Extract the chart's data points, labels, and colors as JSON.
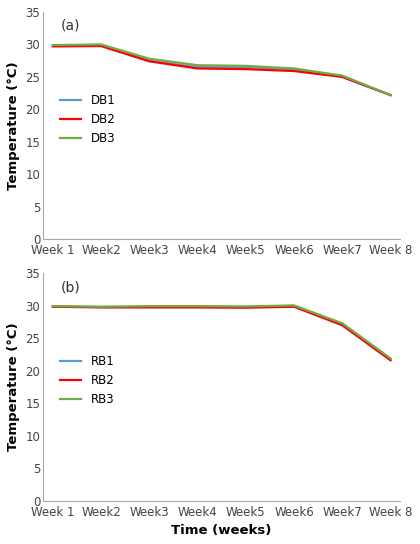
{
  "weeks": [
    "Week 1",
    "Week2",
    "Week3",
    "Week4",
    "Week5",
    "Week6",
    "Week7",
    "Week 8"
  ],
  "panel_a": {
    "label": "(a)",
    "series": {
      "DB1": {
        "color": "#5B9BD5",
        "values": [
          29.8,
          29.9,
          27.5,
          26.5,
          26.5,
          26.2,
          25.0,
          22.2
        ]
      },
      "DB2": {
        "color": "#FF0000",
        "values": [
          29.7,
          29.75,
          27.4,
          26.3,
          26.2,
          25.9,
          25.0,
          22.2
        ]
      },
      "DB3": {
        "color": "#70AD47",
        "values": [
          29.9,
          30.0,
          27.8,
          26.8,
          26.7,
          26.3,
          25.2,
          22.2
        ]
      }
    },
    "ylabel": "Temperature (°C)",
    "ylim": [
      0,
      35
    ],
    "yticks": [
      0,
      5,
      10,
      15,
      20,
      25,
      30,
      35
    ]
  },
  "panel_b": {
    "label": "(b)",
    "series": {
      "RB1": {
        "color": "#5B9BD5",
        "values": [
          29.9,
          29.8,
          29.8,
          29.8,
          29.8,
          30.0,
          27.2,
          21.8
        ]
      },
      "RB2": {
        "color": "#FF0000",
        "values": [
          29.85,
          29.75,
          29.75,
          29.75,
          29.7,
          29.85,
          27.0,
          21.6
        ]
      },
      "RB3": {
        "color": "#70AD47",
        "values": [
          29.95,
          29.85,
          29.95,
          29.95,
          29.9,
          30.05,
          27.3,
          21.9
        ]
      }
    },
    "ylabel": "Temperature (°C)",
    "xlabel": "Time (weeks)",
    "ylim": [
      0,
      35
    ],
    "yticks": [
      0,
      5,
      10,
      15,
      20,
      25,
      30,
      35
    ]
  },
  "line_width": 1.6,
  "legend_fontsize": 8.5,
  "axis_label_fontsize": 9.5,
  "tick_fontsize": 8.5,
  "panel_label_fontsize": 10,
  "background_color": "#ffffff",
  "spine_color": "#aaaaaa"
}
